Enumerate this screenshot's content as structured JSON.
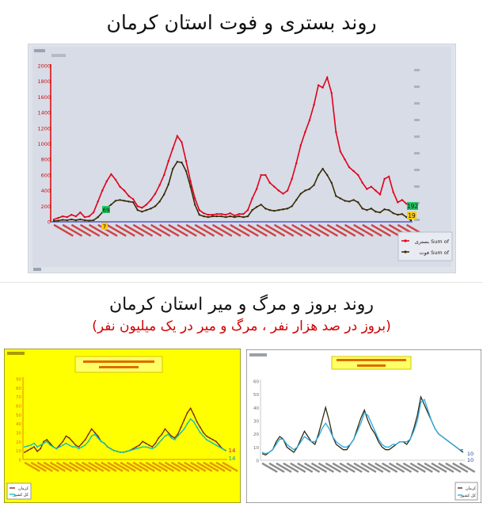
{
  "header": {
    "title_top": "روند بستری و فوت استان کرمان",
    "title_bottom": "روند بروز و مرگ و میر استان کرمان",
    "subtitle_bottom": "(بروز در صد هزار نفر ، مرگ و میر در یک میلیون نفر)"
  },
  "chart_data": [
    {
      "type": "line",
      "yticks": [
        "0",
        "200",
        "400",
        "600",
        "800",
        "1000",
        "1200",
        "1400",
        "1600",
        "1800",
        "2000"
      ],
      "ylim": [
        0,
        2000
      ],
      "grid": false,
      "legend_position": "right",
      "series": [
        {
          "name": "Sum of بستری",
          "color": "#e0001b",
          "values": [
            30,
            50,
            70,
            60,
            90,
            70,
            120,
            60,
            70,
            120,
            260,
            400,
            520,
            610,
            540,
            450,
            400,
            330,
            290,
            200,
            180,
            220,
            280,
            360,
            470,
            600,
            780,
            940,
            1100,
            1020,
            780,
            520,
            300,
            150,
            110,
            90,
            90,
            100,
            100,
            90,
            110,
            80,
            100,
            100,
            150,
            300,
            420,
            600,
            600,
            500,
            450,
            400,
            360,
            400,
            550,
            750,
            980,
            1150,
            1300,
            1500,
            1750,
            1720,
            1850,
            1650,
            1150,
            900,
            800,
            700,
            650,
            600,
            500,
            420,
            450,
            400,
            350,
            550,
            580,
            380,
            250,
            280,
            230,
            200
          ]
        },
        {
          "name": "Sum of فوت",
          "color": "#3a2a05",
          "values": [
            10,
            15,
            25,
            20,
            30,
            20,
            30,
            20,
            15,
            20,
            60,
            120,
            180,
            220,
            270,
            280,
            270,
            260,
            250,
            150,
            130,
            150,
            170,
            200,
            260,
            350,
            480,
            680,
            770,
            760,
            650,
            450,
            220,
            90,
            70,
            60,
            70,
            70,
            70,
            60,
            70,
            60,
            70,
            60,
            70,
            150,
            190,
            220,
            170,
            150,
            140,
            150,
            160,
            170,
            200,
            280,
            360,
            400,
            420,
            470,
            600,
            680,
            600,
            500,
            330,
            300,
            270,
            260,
            280,
            250,
            170,
            150,
            170,
            130,
            120,
            160,
            150,
            110,
            90,
            100,
            60,
            19
          ]
        }
      ],
      "point_labels": [
        "69",
        "7",
        "192",
        "19"
      ],
      "legend": [
        "بستری Sum of",
        "فوت Sum of"
      ],
      "flat_reference_value": 7
    },
    {
      "type": "line",
      "yticks": [
        "0",
        "10",
        "20",
        "30",
        "40",
        "50",
        "60",
        "70",
        "80",
        "90"
      ],
      "ylim": [
        0,
        90
      ],
      "legend_position": "bottom-left",
      "series": [
        {
          "name": "کرمان",
          "color": "#7b1f10",
          "values": [
            8,
            10,
            12,
            14,
            9,
            12,
            20,
            22,
            18,
            14,
            12,
            16,
            20,
            26,
            24,
            20,
            16,
            14,
            18,
            22,
            28,
            34,
            30,
            26,
            20,
            18,
            14,
            12,
            10,
            9,
            8,
            8,
            9,
            10,
            12,
            14,
            16,
            20,
            18,
            16,
            14,
            18,
            24,
            28,
            34,
            30,
            26,
            24,
            28,
            36,
            44,
            52,
            57,
            50,
            42,
            36,
            30,
            26,
            24,
            22,
            20,
            16,
            12,
            10
          ]
        },
        {
          "name": "کل کشور",
          "color": "#00c0c0",
          "values": [
            14,
            15,
            16,
            18,
            14,
            16,
            18,
            20,
            16,
            14,
            12,
            14,
            16,
            18,
            16,
            14,
            14,
            12,
            14,
            16,
            20,
            26,
            28,
            24,
            20,
            18,
            14,
            12,
            10,
            9,
            8,
            8,
            9,
            10,
            11,
            12,
            13,
            14,
            14,
            13,
            12,
            14,
            18,
            22,
            26,
            28,
            24,
            22,
            26,
            30,
            34,
            40,
            45,
            42,
            36,
            30,
            26,
            22,
            20,
            18,
            16,
            14,
            12,
            10
          ]
        }
      ],
      "point_labels": [
        "14",
        "14"
      ]
    },
    {
      "type": "line",
      "yticks": [
        "0",
        "10",
        "20",
        "30",
        "40",
        "50",
        "60"
      ],
      "ylim": [
        0,
        60
      ],
      "legend_position": "bottom-right",
      "series": [
        {
          "name": "کرمان",
          "color": "#2f2a12",
          "values": [
            5,
            4,
            6,
            8,
            14,
            18,
            16,
            10,
            8,
            6,
            10,
            16,
            22,
            18,
            14,
            12,
            20,
            30,
            40,
            30,
            18,
            12,
            10,
            8,
            8,
            12,
            16,
            24,
            32,
            38,
            30,
            24,
            20,
            14,
            10,
            8,
            8,
            10,
            12,
            14,
            14,
            12,
            16,
            24,
            34,
            48,
            42,
            36,
            30,
            24,
            20,
            18,
            16,
            14,
            12,
            10,
            8,
            6
          ]
        },
        {
          "name": "کل کشور",
          "color": "#29a9e0",
          "values": [
            6,
            5,
            6,
            8,
            12,
            16,
            16,
            12,
            10,
            8,
            10,
            14,
            18,
            16,
            14,
            14,
            18,
            24,
            28,
            24,
            18,
            14,
            12,
            10,
            10,
            12,
            16,
            22,
            28,
            36,
            34,
            28,
            22,
            16,
            12,
            10,
            10,
            12,
            12,
            14,
            14,
            14,
            16,
            22,
            30,
            44,
            46,
            38,
            30,
            24,
            20,
            18,
            16,
            14,
            12,
            10,
            8,
            8
          ]
        }
      ],
      "point_labels": [
        "10",
        "10"
      ]
    }
  ]
}
